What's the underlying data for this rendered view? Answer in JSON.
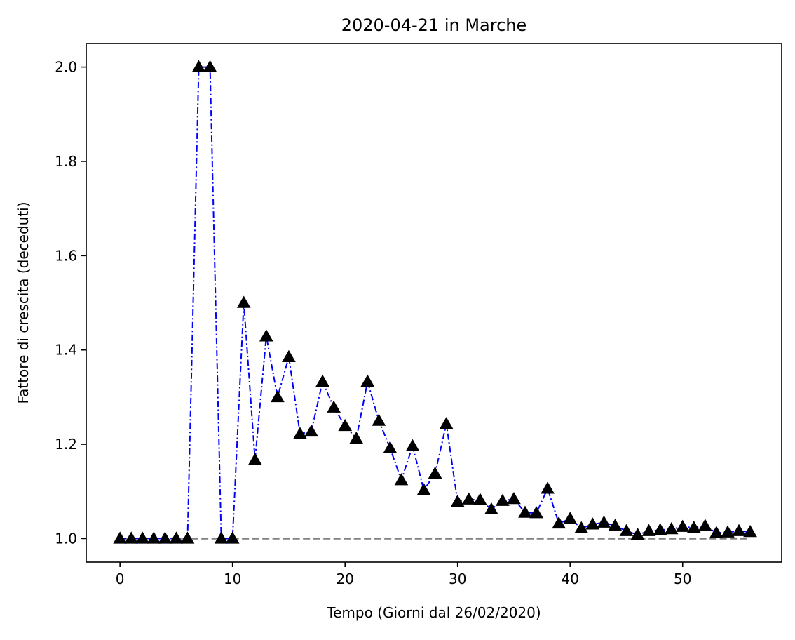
{
  "chart_data": {
    "type": "line",
    "title": "2020-04-21 in Marche",
    "xlabel": "Tempo (Giorni dal 26/02/2020)",
    "ylabel": "Fattore di crescita (deceduti)",
    "xlim": [
      -3,
      58.8
    ],
    "ylim": [
      0.95,
      2.05
    ],
    "x_ticks": [
      0,
      10,
      20,
      30,
      40,
      50
    ],
    "x_tick_labels": [
      "0",
      "10",
      "20",
      "30",
      "40",
      "50"
    ],
    "y_ticks": [
      1.0,
      1.2,
      1.4,
      1.6,
      1.8,
      2.0
    ],
    "y_tick_labels": [
      "1.0",
      "1.2",
      "1.4",
      "1.6",
      "1.8",
      "2.0"
    ],
    "grid": false,
    "legend": "none",
    "series": [
      {
        "style": "dash-dot line with triangle markers",
        "line_color": "#0000ff",
        "marker_color": "#000000",
        "x": [
          0,
          1,
          2,
          3,
          4,
          5,
          6,
          7,
          8,
          9,
          10,
          11,
          12,
          13,
          14,
          15,
          16,
          17,
          18,
          19,
          20,
          21,
          22,
          23,
          24,
          25,
          26,
          27,
          28,
          29,
          30,
          31,
          32,
          33,
          34,
          35,
          36,
          37,
          38,
          39,
          40,
          41,
          42,
          43,
          44,
          45,
          46,
          47,
          48,
          49,
          50,
          51,
          52,
          53,
          54,
          55,
          56
        ],
        "values": [
          1.0,
          1.0,
          1.0,
          1.0,
          1.0,
          1.0,
          1.0,
          2.0,
          2.0,
          1.0,
          1.0,
          1.5,
          1.167,
          1.429,
          1.3,
          1.385,
          1.222,
          1.227,
          1.333,
          1.278,
          1.239,
          1.212,
          1.333,
          1.25,
          1.192,
          1.124,
          1.196,
          1.103,
          1.138,
          1.243,
          1.078,
          1.083,
          1.082,
          1.062,
          1.08,
          1.084,
          1.055,
          1.054,
          1.106,
          1.032,
          1.042,
          1.022,
          1.03,
          1.034,
          1.027,
          1.016,
          1.008,
          1.016,
          1.018,
          1.02,
          1.025,
          1.023,
          1.027,
          1.012,
          1.013,
          1.016,
          1.014
        ]
      }
    ],
    "reference_line": {
      "y": 1.0,
      "x_range": [
        0,
        56
      ],
      "color": "#808080",
      "style": "dashed"
    }
  }
}
